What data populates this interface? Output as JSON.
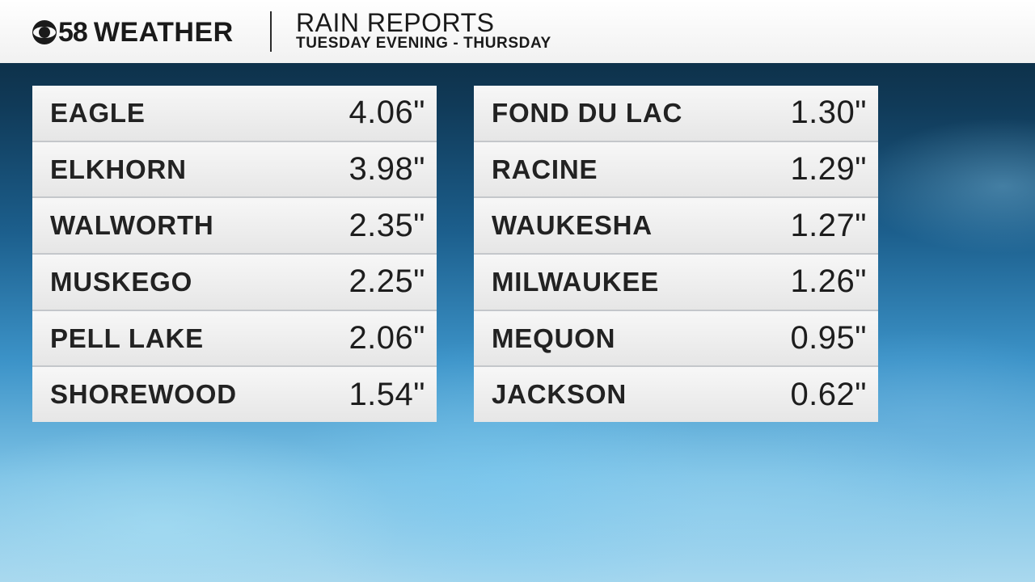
{
  "header": {
    "logo_number": "58",
    "logo_word": "WEATHER",
    "title": "RAIN REPORTS",
    "subtitle": "TUESDAY EVENING - THURSDAY"
  },
  "reports_left": [
    {
      "city": "EAGLE",
      "amount": "4.06\""
    },
    {
      "city": "ELKHORN",
      "amount": "3.98\""
    },
    {
      "city": "WALWORTH",
      "amount": "2.35\""
    },
    {
      "city": "MUSKEGO",
      "amount": "2.25\""
    },
    {
      "city": "PELL LAKE",
      "amount": "2.06\""
    },
    {
      "city": "SHOREWOOD",
      "amount": "1.54\""
    }
  ],
  "reports_right": [
    {
      "city": "FOND DU LAC",
      "amount": "1.30\""
    },
    {
      "city": "RACINE",
      "amount": "1.29\""
    },
    {
      "city": "WAUKESHA",
      "amount": "1.27\""
    },
    {
      "city": "MILWAUKEE",
      "amount": "1.26\""
    },
    {
      "city": "MEQUON",
      "amount": "0.95\""
    },
    {
      "city": "JACKSON",
      "amount": "0.62\""
    }
  ],
  "icons": {
    "logo": "cbs-eye-icon"
  },
  "colors": {
    "header_bg": "#f4f4f4",
    "row_bg": "#eeeeee",
    "text": "#222222",
    "background_water": "#2f7fb5"
  }
}
